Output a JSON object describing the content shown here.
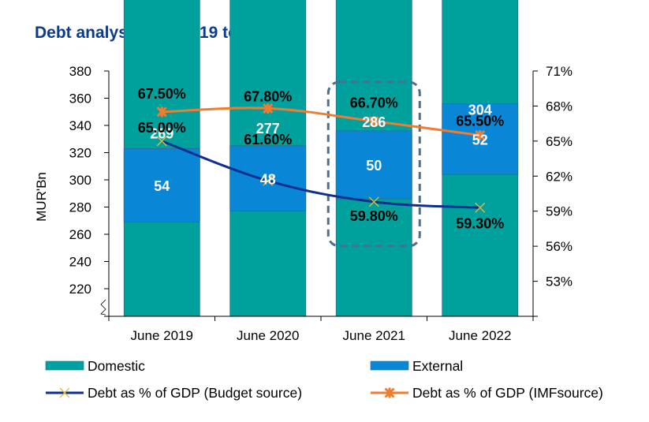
{
  "chart_data": {
    "type": "bar",
    "title": "Debt analysis - June 19 to June 22",
    "xlabel": "",
    "ylabel": "MUR'Bn",
    "y2label": "",
    "categories": [
      "June 2019",
      "June 2020",
      "June 2021",
      "June 2022"
    ],
    "ylim": [
      200,
      380
    ],
    "yticks": [
      220,
      240,
      260,
      280,
      300,
      320,
      340,
      360,
      380
    ],
    "y_axis_break": true,
    "y2lim": [
      50,
      71
    ],
    "y2ticks": [
      "53%",
      "56%",
      "59%",
      "62%",
      "65%",
      "68%",
      "71%"
    ],
    "y2tick_values": [
      53,
      56,
      59,
      62,
      65,
      68,
      71
    ],
    "stacked": true,
    "series": [
      {
        "name": "Domestic",
        "kind": "bar",
        "axis": "left",
        "color": "#00a09d",
        "values": [
          269,
          277,
          286,
          304
        ],
        "labels": [
          "269",
          "277",
          "286",
          "304"
        ]
      },
      {
        "name": "External",
        "kind": "bar",
        "axis": "left",
        "color": "#0a86d6",
        "values": [
          54,
          48,
          50,
          52
        ],
        "labels": [
          "54",
          "48",
          "50",
          "52"
        ]
      },
      {
        "name": "Debt as % of GDP (Budget source)",
        "kind": "line",
        "axis": "right",
        "color": "#0d2f8f",
        "marker": "x",
        "marker_color": "#e0c030",
        "values": [
          65.0,
          61.6,
          59.8,
          59.3
        ],
        "labels": [
          "65.00%",
          "61.60%",
          "59.80%",
          "59.30%"
        ]
      },
      {
        "name": "Debt as % of GDP (IMFsource)",
        "kind": "line",
        "axis": "right",
        "color": "#ef7d31",
        "marker": "asterisk",
        "marker_color": "#ef7d31",
        "values": [
          67.5,
          67.8,
          66.7,
          65.5
        ],
        "labels": [
          "67.50%",
          "67.80%",
          "66.70%",
          "65.50%"
        ]
      }
    ],
    "annotations": [
      {
        "type": "dashed-rounded-box",
        "target_category": "June 2021",
        "color": "#4a6f8f"
      }
    ],
    "legend": {
      "position": "bottom",
      "entries": [
        "Domestic",
        "External",
        "Debt as % of GDP (Budget source)",
        "Debt as % of GDP (IMFsource)"
      ]
    },
    "grid": false
  }
}
